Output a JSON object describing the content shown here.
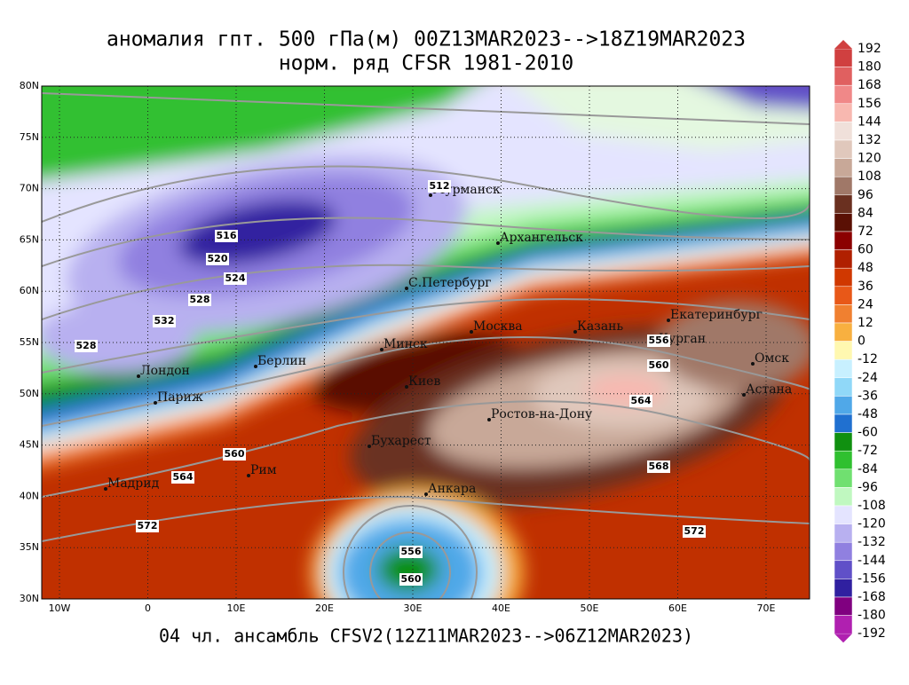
{
  "title": [
    "аномалия гпт. 500 гПа(м) 00Z13MAR2023-->18Z19MAR2023",
    "норм. ряд CFSR 1981-2010"
  ],
  "footer": "04 чл. ансамбль CFSV2(12Z11MAR2023-->06Z12MAR2023)",
  "lat_labels": [
    "80N",
    "75N",
    "70N",
    "65N",
    "60N",
    "55N",
    "50N",
    "45N",
    "40N",
    "35N",
    "30N"
  ],
  "lon_labels": [
    "10W",
    "0",
    "10E",
    "20E",
    "30E",
    "40E",
    "50E",
    "60E",
    "70E"
  ],
  "cities": [
    "Мурманск",
    "Архангельск",
    "С.Петербург",
    "Москва",
    "Казань",
    "Екатеринбург",
    "Курган",
    "Омск",
    "Астана",
    "Минск",
    "Берлин",
    "Лондон",
    "Париж",
    "Киев",
    "Ростов-на-Дону",
    "Бухарест",
    "Рим",
    "Мадрид",
    "Анкара"
  ],
  "contour_labels": [
    512,
    516,
    520,
    524,
    528,
    532,
    528,
    556,
    560,
    564,
    568,
    560,
    564,
    572,
    572,
    556,
    560
  ],
  "colorbar": {
    "levels": [
      192,
      180,
      168,
      156,
      144,
      132,
      120,
      108,
      96,
      84,
      72,
      60,
      48,
      36,
      24,
      12,
      0,
      -12,
      -24,
      -36,
      -48,
      -60,
      -72,
      -84,
      -96,
      -108,
      -120,
      -132,
      -144,
      -156,
      -168,
      -180,
      -192
    ],
    "colors": [
      "#d04040",
      "#e06060",
      "#f08888",
      "#f8b8b0",
      "#f0e0da",
      "#e0c8bc",
      "#c8a898",
      "#a07868",
      "#6a3020",
      "#5a1004",
      "#8b0000",
      "#b02000",
      "#d03800",
      "#e85818",
      "#f08030",
      "#f8b040",
      "#fff8b0",
      "#c8f0ff",
      "#90d8f8",
      "#50a8e8",
      "#2070d0",
      "#109010",
      "#30c030",
      "#70e070",
      "#c0f8c0",
      "#e4e4ff",
      "#b8b0f0",
      "#9080e0",
      "#6050c8",
      "#3020a0",
      "#800080",
      "#b020b0"
    ]
  }
}
